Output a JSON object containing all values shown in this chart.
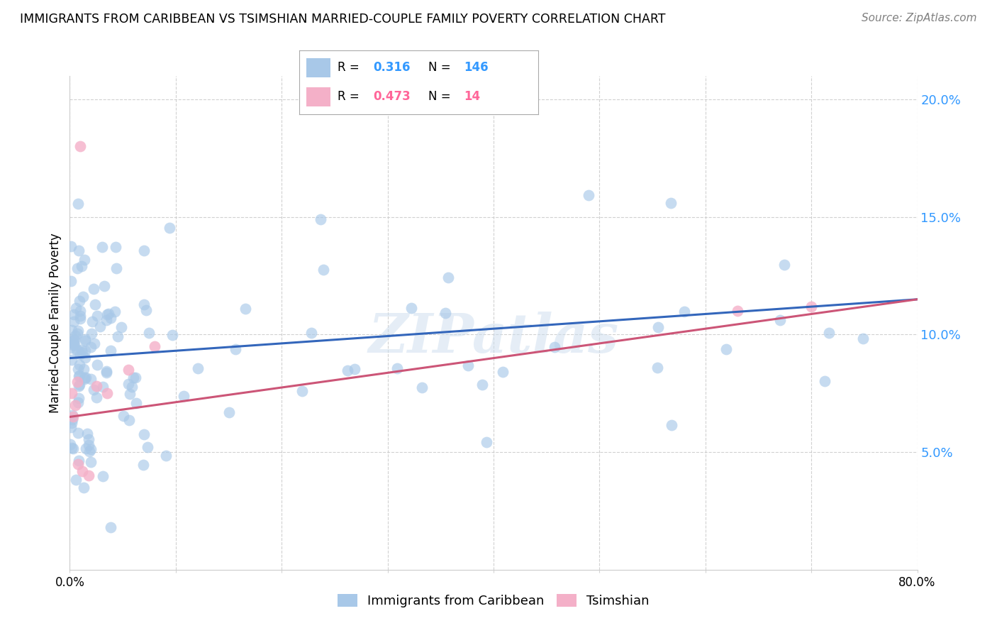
{
  "title": "IMMIGRANTS FROM CARIBBEAN VS TSIMSHIAN MARRIED-COUPLE FAMILY POVERTY CORRELATION CHART",
  "source": "Source: ZipAtlas.com",
  "ylabel": "Married-Couple Family Poverty",
  "legend_label1": "Immigrants from Caribbean",
  "legend_label2": "Tsimshian",
  "R1": "0.316",
  "N1": "146",
  "R2": "0.473",
  "N2": "14",
  "color_blue": "#a8c8e8",
  "color_pink": "#f4b0c8",
  "color_blue_dark": "#3399ff",
  "color_pink_dark": "#ff6699",
  "color_line_blue": "#3366bb",
  "color_line_pink": "#cc5577",
  "watermark": "ZIPatlas",
  "xmin": 0.0,
  "xmax": 80.0,
  "ymin": 0.0,
  "ymax": 21.0,
  "ytick_vals": [
    5.0,
    10.0,
    15.0,
    20.0
  ],
  "blue_line_start_y": 9.0,
  "blue_line_end_y": 11.5,
  "pink_line_start_y": 6.5,
  "pink_line_end_y": 11.5
}
